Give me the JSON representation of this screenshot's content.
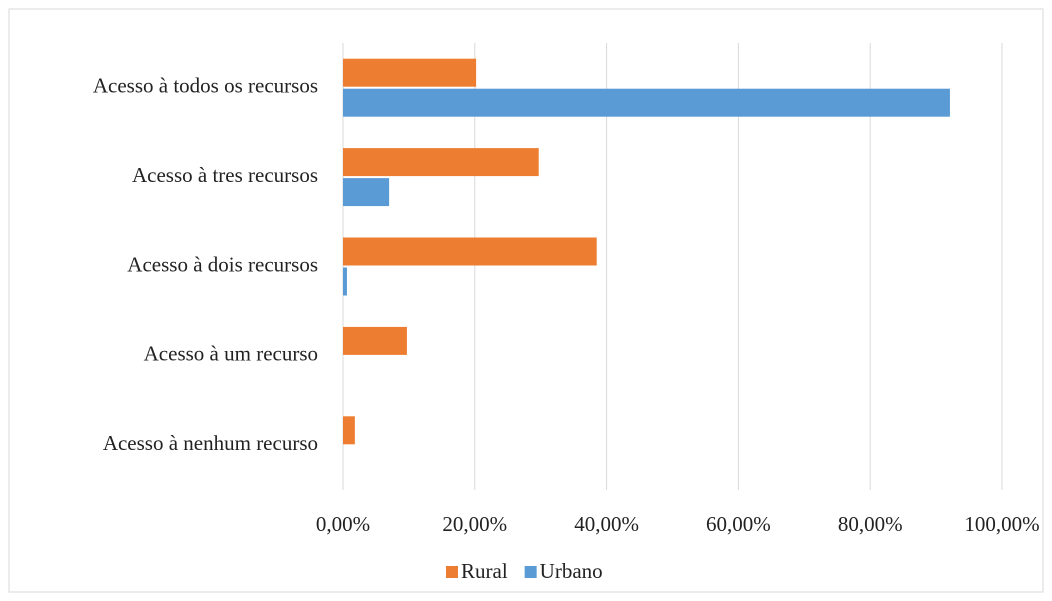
{
  "chart_data": {
    "type": "bar",
    "orientation": "horizontal",
    "categories": [
      "Acesso à todos os recursos",
      "Acesso à tres recursos",
      "Acesso à dois recursos",
      "Acesso à um recurso",
      "Acesso à nenhum recurso"
    ],
    "series": [
      {
        "name": "Rural",
        "color": "#ed7d31",
        "values": [
          20.2,
          29.7,
          38.5,
          9.7,
          1.8
        ]
      },
      {
        "name": "Urbano",
        "color": "#5b9bd5",
        "values": [
          92.1,
          7.0,
          0.6,
          0,
          0
        ]
      }
    ],
    "xlim": [
      0,
      100
    ],
    "xticks": [
      {
        "value": 0,
        "label": "0,00%"
      },
      {
        "value": 20,
        "label": "20,00%"
      },
      {
        "value": 40,
        "label": "40,00%"
      },
      {
        "value": 60,
        "label": "60,00%"
      },
      {
        "value": 80,
        "label": "80,00%"
      },
      {
        "value": 100,
        "label": "100,00%"
      }
    ],
    "grid": true,
    "legend": "bottom"
  }
}
